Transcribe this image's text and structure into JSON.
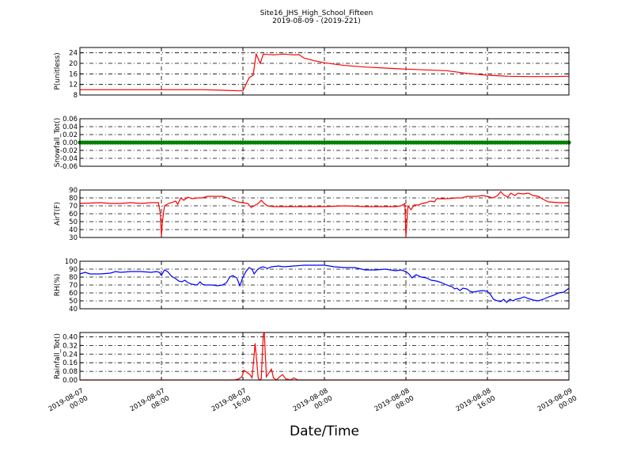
{
  "figure": {
    "title_line1": "Site16_JHS_High_School_Fifteen",
    "title_line2": "2019-08-09 - (2019-221)",
    "xlabel": "Date/Time"
  },
  "x_axis": {
    "range_hours": [
      0,
      48
    ],
    "ticks": [
      {
        "hours": 0,
        "line1": "2019-08-07",
        "line2": "00:00"
      },
      {
        "hours": 8,
        "line1": "2019-08-07",
        "line2": "08:00"
      },
      {
        "hours": 16,
        "line1": "2019-08-07",
        "line2": "16:00"
      },
      {
        "hours": 24,
        "line1": "2019-08-08",
        "line2": "00:00"
      },
      {
        "hours": 32,
        "line1": "2019-08-08",
        "line2": "08:00"
      },
      {
        "hours": 40,
        "line1": "2019-08-08",
        "line2": "16:00"
      },
      {
        "hours": 48,
        "line1": "2019-08-09",
        "line2": "00:00"
      }
    ]
  },
  "chart_data": [
    {
      "type": "line",
      "ylabel": "P(unitless)",
      "ylim": [
        8,
        26
      ],
      "yticks": [
        8,
        12,
        16,
        20,
        24
      ],
      "grid": true,
      "series": [
        {
          "color": "#ff0000",
          "points": [
            [
              0,
              10
            ],
            [
              4,
              10
            ],
            [
              8,
              10
            ],
            [
              12,
              10
            ],
            [
              14,
              9.8
            ],
            [
              15.5,
              9.6
            ],
            [
              16,
              9.6
            ],
            [
              16.3,
              12
            ],
            [
              16.6,
              14.5
            ],
            [
              17,
              15.5
            ],
            [
              17.3,
              23.5
            ],
            [
              17.7,
              20
            ],
            [
              18,
              23.5
            ],
            [
              19,
              23.2
            ],
            [
              20,
              23.5
            ],
            [
              21,
              23.2
            ],
            [
              21.5,
              23.3
            ],
            [
              22,
              22
            ],
            [
              23,
              21
            ],
            [
              24,
              20.2
            ],
            [
              26,
              19.2
            ],
            [
              28,
              18.6
            ],
            [
              30,
              18.2
            ],
            [
              32,
              17.8
            ],
            [
              34,
              17.5
            ],
            [
              36,
              17.2
            ],
            [
              38,
              16.2
            ],
            [
              40,
              15.5
            ],
            [
              42,
              15.1
            ],
            [
              44,
              15
            ],
            [
              46,
              15
            ],
            [
              48,
              15.1
            ]
          ]
        }
      ]
    },
    {
      "type": "scatter",
      "ylabel": "Snowfall_Tot()",
      "ylim": [
        -0.06,
        0.06
      ],
      "yticks": [
        -0.06,
        -0.04,
        -0.02,
        0.0,
        0.02,
        0.04,
        0.06
      ],
      "grid": true,
      "series": [
        {
          "color": "#008000",
          "x_start": 0,
          "x_end": 48,
          "x_step": 0.25,
          "y": 0.0
        }
      ]
    },
    {
      "type": "line",
      "ylabel": "AirT(F)",
      "ylim": [
        30,
        90
      ],
      "yticks": [
        30,
        40,
        50,
        60,
        70,
        80,
        90
      ],
      "grid": true,
      "series": [
        {
          "color": "#ff0000",
          "points": [
            [
              0,
              73
            ],
            [
              2,
              74
            ],
            [
              3,
              73
            ],
            [
              4,
              73
            ],
            [
              5,
              74
            ],
            [
              6,
              73
            ],
            [
              7,
              74
            ],
            [
              7.7,
              74
            ],
            [
              7.9,
              60
            ],
            [
              8,
              32
            ],
            [
              8.1,
              50
            ],
            [
              8.3,
              70
            ],
            [
              8.7,
              73
            ],
            [
              9,
              74
            ],
            [
              9.4,
              76
            ],
            [
              9.6,
              72
            ],
            [
              9.9,
              80
            ],
            [
              10.2,
              77
            ],
            [
              10.6,
              81
            ],
            [
              11,
              79
            ],
            [
              11.5,
              80
            ],
            [
              12,
              80
            ],
            [
              12.5,
              82
            ],
            [
              13,
              82
            ],
            [
              14,
              82
            ],
            [
              14.5,
              80
            ],
            [
              15,
              77
            ],
            [
              15.5,
              75
            ],
            [
              16,
              74
            ],
            [
              16.5,
              73
            ],
            [
              16.8,
              68
            ],
            [
              17.1,
              70
            ],
            [
              17.5,
              73
            ],
            [
              17.8,
              77
            ],
            [
              18.1,
              73
            ],
            [
              18.4,
              70
            ],
            [
              19,
              69
            ],
            [
              20,
              69
            ],
            [
              22,
              69
            ],
            [
              24,
              69
            ],
            [
              26,
              70
            ],
            [
              28,
              69
            ],
            [
              30,
              69
            ],
            [
              31,
              69
            ],
            [
              31.5,
              70
            ],
            [
              31.9,
              73
            ],
            [
              32,
              31
            ],
            [
              32.2,
              70
            ],
            [
              32.5,
              65
            ],
            [
              32.8,
              71
            ],
            [
              33.2,
              71
            ],
            [
              33.6,
              73
            ],
            [
              34,
              74
            ],
            [
              34.4,
              76
            ],
            [
              34.8,
              75
            ],
            [
              35,
              79
            ],
            [
              36,
              79
            ],
            [
              37,
              80
            ],
            [
              37.5,
              80
            ],
            [
              38,
              82
            ],
            [
              39,
              82
            ],
            [
              39.5,
              83
            ],
            [
              40,
              82
            ],
            [
              40.5,
              80
            ],
            [
              41,
              83
            ],
            [
              41.3,
              88
            ],
            [
              41.6,
              84
            ],
            [
              42,
              81
            ],
            [
              42.3,
              86
            ],
            [
              42.7,
              83
            ],
            [
              43,
              86
            ],
            [
              43.5,
              85
            ],
            [
              44,
              86
            ],
            [
              44.5,
              83
            ],
            [
              45,
              82
            ],
            [
              45.5,
              78
            ],
            [
              46,
              75
            ],
            [
              47,
              74
            ],
            [
              48,
              74
            ]
          ]
        }
      ]
    },
    {
      "type": "line",
      "ylabel": "RH(%)",
      "ylim": [
        40,
        100
      ],
      "yticks": [
        40,
        50,
        60,
        70,
        80,
        90,
        100
      ],
      "grid": true,
      "series": [
        {
          "color": "#0000ff",
          "points": [
            [
              0,
              84
            ],
            [
              0.5,
              86
            ],
            [
              1,
              84
            ],
            [
              2,
              84
            ],
            [
              3,
              85
            ],
            [
              3.5,
              87
            ],
            [
              4,
              86
            ],
            [
              5,
              87
            ],
            [
              6,
              87
            ],
            [
              7,
              86
            ],
            [
              7.5,
              87
            ],
            [
              7.8,
              86
            ],
            [
              8,
              82
            ],
            [
              8.3,
              89
            ],
            [
              8.6,
              87
            ],
            [
              9,
              81
            ],
            [
              9.4,
              78
            ],
            [
              9.7,
              75
            ],
            [
              10,
              74
            ],
            [
              10.3,
              76
            ],
            [
              10.6,
              73
            ],
            [
              11,
              71
            ],
            [
              11.5,
              70
            ],
            [
              11.8,
              74
            ],
            [
              12,
              71
            ],
            [
              12.3,
              70
            ],
            [
              13,
              70
            ],
            [
              13.5,
              69
            ],
            [
              14,
              70
            ],
            [
              14.4,
              73
            ],
            [
              14.7,
              80
            ],
            [
              15,
              82
            ],
            [
              15.4,
              79
            ],
            [
              15.7,
              69
            ],
            [
              16,
              80
            ],
            [
              16.3,
              87
            ],
            [
              16.6,
              92
            ],
            [
              16.9,
              90
            ],
            [
              17.1,
              84
            ],
            [
              17.4,
              89
            ],
            [
              17.7,
              92
            ],
            [
              18,
              93
            ],
            [
              18.4,
              91
            ],
            [
              18.8,
              93
            ],
            [
              19.5,
              94
            ],
            [
              20,
              93
            ],
            [
              21,
              94
            ],
            [
              22,
              95
            ],
            [
              23,
              95
            ],
            [
              24,
              95
            ],
            [
              25,
              93
            ],
            [
              26,
              92
            ],
            [
              27,
              92
            ],
            [
              28,
              89
            ],
            [
              29,
              89
            ],
            [
              30,
              90
            ],
            [
              30.5,
              89
            ],
            [
              31,
              88
            ],
            [
              31.5,
              89
            ],
            [
              32,
              87
            ],
            [
              32.3,
              84
            ],
            [
              32.6,
              79
            ],
            [
              33,
              83
            ],
            [
              33.5,
              80
            ],
            [
              34,
              79
            ],
            [
              34.5,
              76
            ],
            [
              35,
              75
            ],
            [
              35.5,
              73
            ],
            [
              36,
              70
            ],
            [
              36.5,
              68
            ],
            [
              36.8,
              65
            ],
            [
              37,
              66
            ],
            [
              37.3,
              63
            ],
            [
              37.6,
              66
            ],
            [
              38,
              65
            ],
            [
              38.3,
              62
            ],
            [
              38.6,
              61
            ],
            [
              39,
              62
            ],
            [
              39.5,
              63
            ],
            [
              40,
              62
            ],
            [
              40.3,
              58
            ],
            [
              40.6,
              52
            ],
            [
              41,
              50
            ],
            [
              41.3,
              49
            ],
            [
              41.6,
              52
            ],
            [
              41.9,
              48
            ],
            [
              42.2,
              52
            ],
            [
              42.5,
              50
            ],
            [
              42.8,
              52
            ],
            [
              43.2,
              53
            ],
            [
              43.6,
              55
            ],
            [
              44,
              53
            ],
            [
              44.5,
              51
            ],
            [
              45,
              50
            ],
            [
              45.5,
              52
            ],
            [
              46,
              55
            ],
            [
              46.5,
              57
            ],
            [
              47,
              60
            ],
            [
              47.5,
              61
            ],
            [
              48,
              66
            ]
          ]
        }
      ]
    },
    {
      "type": "line",
      "ylabel": "Rainfall_Tot()",
      "ylim": [
        0,
        0.44
      ],
      "yticks": [
        0.0,
        0.08,
        0.16,
        0.24,
        0.32,
        0.4
      ],
      "grid": true,
      "series": [
        {
          "color": "#ff0000",
          "points": [
            [
              0,
              0
            ],
            [
              15.2,
              0
            ],
            [
              15.6,
              0.01
            ],
            [
              15.9,
              0.03
            ],
            [
              16.1,
              0.09
            ],
            [
              16.4,
              0.07
            ],
            [
              16.7,
              0.05
            ],
            [
              16.9,
              0.02
            ],
            [
              17.2,
              0.34
            ],
            [
              17.5,
              0.02
            ],
            [
              17.6,
              0
            ],
            [
              17.8,
              0.01
            ],
            [
              18.0,
              0.42
            ],
            [
              18.1,
              0.44
            ],
            [
              18.3,
              0.03
            ],
            [
              18.5,
              0.06
            ],
            [
              18.8,
              0.1
            ],
            [
              19.0,
              0.02
            ],
            [
              19.3,
              0.0
            ],
            [
              19.6,
              0.03
            ],
            [
              19.9,
              0.05
            ],
            [
              20.2,
              0.01
            ],
            [
              20.7,
              0.0
            ],
            [
              21.0,
              0.02
            ],
            [
              21.4,
              0.0
            ],
            [
              22,
              0
            ],
            [
              48,
              0
            ]
          ]
        }
      ]
    }
  ]
}
